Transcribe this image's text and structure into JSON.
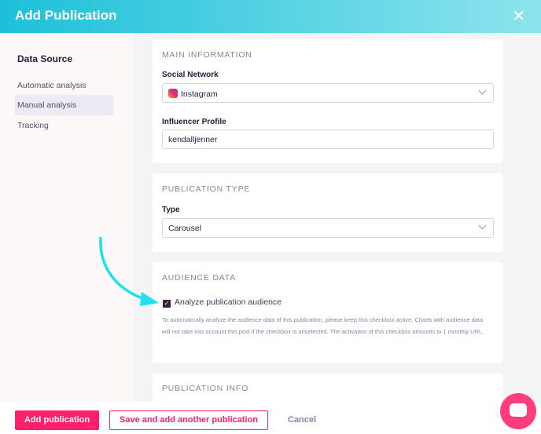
{
  "header": {
    "title": "Add Publication",
    "close": "✕"
  },
  "sidebar": {
    "heading": "Data Source",
    "items": [
      {
        "label": "Automatic analysis"
      },
      {
        "label": "Manual analysis"
      },
      {
        "label": "Tracking"
      }
    ]
  },
  "main": {
    "section1": {
      "title": "MAIN INFORMATION",
      "network_label": "Social Network",
      "network_value": "Instagram",
      "profile_label": "Influencer Profile",
      "profile_value": "kendalljenner"
    },
    "section2": {
      "title": "PUBLICATION TYPE",
      "type_label": "Type",
      "type_value": "Carousel"
    },
    "section3": {
      "title": "AUDIENCE DATA",
      "checkbox_label": "Analyze publication audience",
      "checked": true,
      "help": "To automatically analyze the audience data of this publication, please keep this checkbox active. Charts with audience data will not take into account this post if the checkbox is unselected. The activation of this checkbox amounts to 1 monthly URL."
    },
    "section4": {
      "title": "PUBLICATION INFO"
    }
  },
  "footer": {
    "add": "Add publication",
    "save_another": "Save and add another publication",
    "cancel": "Cancel"
  },
  "colors": {
    "accent": "#ff1f6a",
    "header_start": "#1cc0d9",
    "arrow": "#1ee0ee"
  }
}
